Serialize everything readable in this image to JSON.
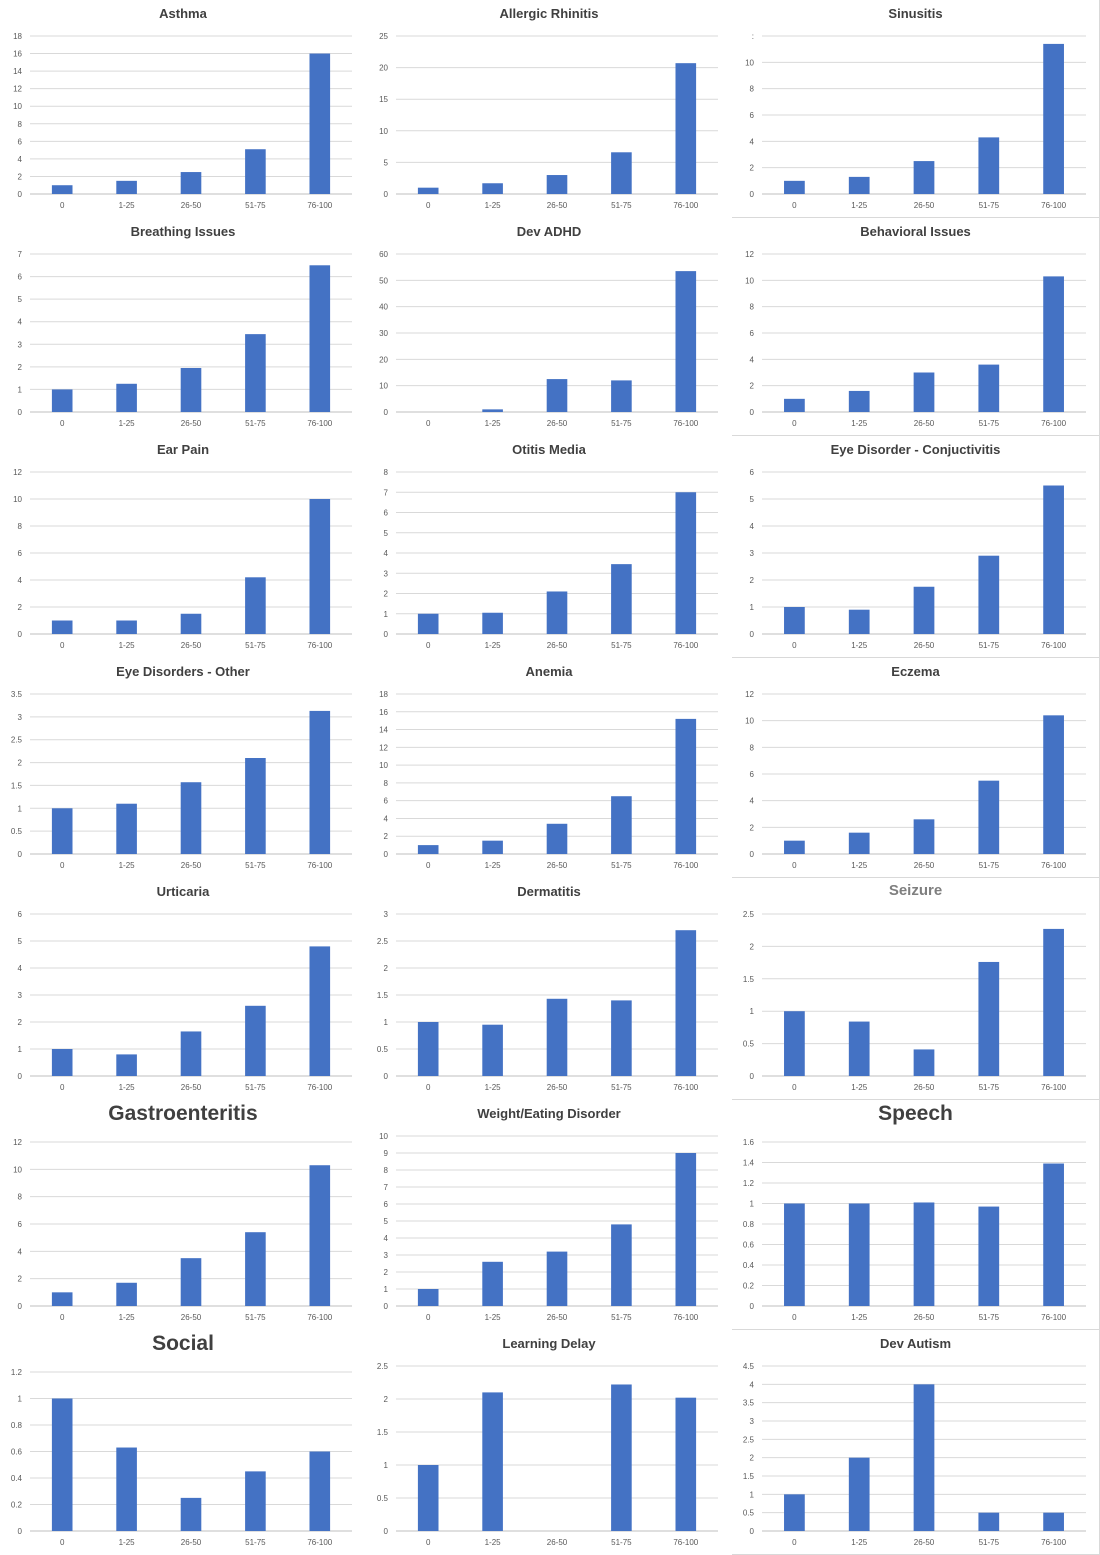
{
  "chart_data": [
    {
      "type": "bar",
      "title": "Asthma",
      "categories": [
        "0",
        "1-25",
        "26-50",
        "51-75",
        "76-100"
      ],
      "values": [
        1,
        1.5,
        2.5,
        5.1,
        16
      ],
      "ylim": [
        0,
        18
      ],
      "yticks": [
        "0",
        "2",
        "4",
        "6",
        "8",
        "10",
        "12",
        "14",
        "16",
        "18"
      ],
      "xlabel": "",
      "ylabel": "",
      "grid": true
    },
    {
      "type": "bar",
      "title": "Allergic Rhinitis",
      "categories": [
        "0",
        "1-25",
        "26-50",
        "51-75",
        "76-100"
      ],
      "values": [
        1,
        1.7,
        3,
        6.6,
        20.7
      ],
      "ylim": [
        0,
        25
      ],
      "yticks": [
        "0",
        "5",
        "10",
        "15",
        "20",
        "25"
      ],
      "xlabel": "",
      "ylabel": "",
      "grid": true
    },
    {
      "type": "bar",
      "title": "Sinusitis",
      "categories": [
        "0",
        "1-25",
        "26-50",
        "51-75",
        "76-100"
      ],
      "values": [
        1,
        1.3,
        2.5,
        4.3,
        11.4
      ],
      "ylim": [
        0,
        12
      ],
      "yticks": [
        "0",
        "2",
        "4",
        "6",
        "8",
        "10",
        ":"
      ],
      "xlabel": "",
      "ylabel": "",
      "grid": true
    },
    {
      "type": "bar",
      "title": "Breathing Issues",
      "categories": [
        "0",
        "1-25",
        "26-50",
        "51-75",
        "76-100"
      ],
      "values": [
        1,
        1.25,
        1.95,
        3.45,
        6.5
      ],
      "ylim": [
        0,
        7
      ],
      "yticks": [
        "0",
        "1",
        "2",
        "3",
        "4",
        "5",
        "6",
        "7"
      ],
      "xlabel": "",
      "ylabel": "",
      "grid": true
    },
    {
      "type": "bar",
      "title": "Dev ADHD",
      "categories": [
        "0",
        "1-25",
        "26-50",
        "51-75",
        "76-100"
      ],
      "values": [
        0,
        1,
        12.5,
        12,
        53.5
      ],
      "ylim": [
        0,
        60
      ],
      "yticks": [
        "0",
        "10",
        "20",
        "30",
        "40",
        "50",
        "60"
      ],
      "xlabel": "",
      "ylabel": "",
      "grid": true
    },
    {
      "type": "bar",
      "title": "Behavioral Issues",
      "categories": [
        "0",
        "1-25",
        "26-50",
        "51-75",
        "76-100"
      ],
      "values": [
        1,
        1.6,
        3,
        3.6,
        10.3
      ],
      "ylim": [
        0,
        12
      ],
      "yticks": [
        "0",
        "2",
        "4",
        "6",
        "8",
        "10",
        "12"
      ],
      "xlabel": "",
      "ylabel": "",
      "grid": true
    },
    {
      "type": "bar",
      "title": "Ear Pain",
      "categories": [
        "0",
        "1-25",
        "26-50",
        "51-75",
        "76-100"
      ],
      "values": [
        1,
        1,
        1.5,
        4.2,
        10
      ],
      "ylim": [
        0,
        12
      ],
      "yticks": [
        "0",
        "2",
        "4",
        "6",
        "8",
        "10",
        "12"
      ],
      "xlabel": "",
      "ylabel": "",
      "grid": true
    },
    {
      "type": "bar",
      "title": "Otitis Media",
      "categories": [
        "0",
        "1-25",
        "26-50",
        "51-75",
        "76-100"
      ],
      "values": [
        1,
        1.05,
        2.1,
        3.45,
        7
      ],
      "ylim": [
        0,
        8
      ],
      "yticks": [
        "0",
        "1",
        "2",
        "3",
        "4",
        "5",
        "6",
        "7",
        "8"
      ],
      "xlabel": "",
      "ylabel": "",
      "grid": true
    },
    {
      "type": "bar",
      "title": "Eye Disorder - Conjuctivitis",
      "categories": [
        "0",
        "1-25",
        "26-50",
        "51-75",
        "76-100"
      ],
      "values": [
        1,
        0.9,
        1.75,
        2.9,
        5.5
      ],
      "ylim": [
        0,
        6
      ],
      "yticks": [
        "0",
        "1",
        "2",
        "3",
        "4",
        "5",
        "6"
      ],
      "xlabel": "",
      "ylabel": "",
      "grid": true
    },
    {
      "type": "bar",
      "title": "Eye Disorders - Other",
      "categories": [
        "0",
        "1-25",
        "26-50",
        "51-75",
        "76-100"
      ],
      "values": [
        1,
        1.1,
        1.57,
        2.1,
        3.13
      ],
      "ylim": [
        0,
        3.5
      ],
      "yticks": [
        "0",
        "0.5",
        "1",
        "1.5",
        "2",
        "2.5",
        "3",
        "3.5"
      ],
      "xlabel": "",
      "ylabel": "",
      "grid": true
    },
    {
      "type": "bar",
      "title": "Anemia",
      "categories": [
        "0",
        "1-25",
        "26-50",
        "51-75",
        "76-100"
      ],
      "values": [
        1,
        1.5,
        3.4,
        6.5,
        15.2
      ],
      "ylim": [
        0,
        18
      ],
      "yticks": [
        "0",
        "2",
        "4",
        "6",
        "8",
        "10",
        "12",
        "14",
        "16",
        "18"
      ],
      "xlabel": "",
      "ylabel": "",
      "grid": true
    },
    {
      "type": "bar",
      "title": "Eczema",
      "categories": [
        "0",
        "1-25",
        "26-50",
        "51-75",
        "76-100"
      ],
      "values": [
        1,
        1.6,
        2.6,
        5.5,
        10.4
      ],
      "ylim": [
        0,
        12
      ],
      "yticks": [
        "0",
        "2",
        "4",
        "6",
        "8",
        "10",
        "12"
      ],
      "xlabel": "",
      "ylabel": "",
      "grid": true
    },
    {
      "type": "bar",
      "title": "Urticaria",
      "categories": [
        "0",
        "1-25",
        "26-50",
        "51-75",
        "76-100"
      ],
      "values": [
        1,
        0.8,
        1.65,
        2.6,
        4.8
      ],
      "ylim": [
        0,
        6
      ],
      "yticks": [
        "0",
        "1",
        "2",
        "3",
        "4",
        "5",
        "6"
      ],
      "xlabel": "",
      "ylabel": "",
      "grid": true
    },
    {
      "type": "bar",
      "title": "Dermatitis",
      "categories": [
        "0",
        "1-25",
        "26-50",
        "51-75",
        "76-100"
      ],
      "values": [
        1,
        0.95,
        1.43,
        1.4,
        2.7
      ],
      "ylim": [
        0,
        3
      ],
      "yticks": [
        "0",
        "0.5",
        "1",
        "1.5",
        "2",
        "2.5",
        "3"
      ],
      "xlabel": "",
      "ylabel": "",
      "grid": true
    },
    {
      "type": "bar",
      "title": "Seizure",
      "categories": [
        "0",
        "1-25",
        "26-50",
        "51-75",
        "76-100"
      ],
      "values": [
        1,
        0.84,
        0.41,
        1.76,
        2.27
      ],
      "ylim": [
        0,
        2.5
      ],
      "yticks": [
        "0",
        "0.5",
        "1",
        "1.5",
        "2",
        "2.5"
      ],
      "xlabel": "",
      "ylabel": "",
      "grid": true
    },
    {
      "type": "bar",
      "title": "Gastroenteritis",
      "categories": [
        "0",
        "1-25",
        "26-50",
        "51-75",
        "76-100"
      ],
      "values": [
        1,
        1.7,
        3.5,
        5.4,
        10.3
      ],
      "ylim": [
        0,
        12
      ],
      "yticks": [
        "0",
        "2",
        "4",
        "6",
        "8",
        "10",
        "12"
      ],
      "xlabel": "",
      "ylabel": "",
      "grid": true
    },
    {
      "type": "bar",
      "title": "Weight/Eating Disorder",
      "categories": [
        "0",
        "1-25",
        "26-50",
        "51-75",
        "76-100"
      ],
      "values": [
        1,
        2.6,
        3.2,
        4.8,
        9
      ],
      "ylim": [
        0,
        10
      ],
      "yticks": [
        "0",
        "1",
        "2",
        "3",
        "4",
        "5",
        "6",
        "7",
        "8",
        "9",
        "10"
      ],
      "xlabel": "",
      "ylabel": "",
      "grid": true
    },
    {
      "type": "bar",
      "title": "Speech",
      "categories": [
        "0",
        "1-25",
        "26-50",
        "51-75",
        "76-100"
      ],
      "values": [
        1,
        1,
        1.01,
        0.97,
        1.39
      ],
      "ylim": [
        0,
        1.6
      ],
      "yticks": [
        "0",
        "0.2",
        "0.4",
        "0.6",
        "0.8",
        "1",
        "1.2",
        "1.4",
        "1.6"
      ],
      "xlabel": "",
      "ylabel": "",
      "grid": true
    },
    {
      "type": "bar",
      "title": "Social",
      "categories": [
        "0",
        "1-25",
        "26-50",
        "51-75",
        "76-100"
      ],
      "values": [
        1,
        0.63,
        0.25,
        0.45,
        0.6
      ],
      "ylim": [
        0,
        1.2
      ],
      "yticks": [
        "0",
        "0.2",
        "0.4",
        "0.6",
        "0.8",
        "1",
        "1.2"
      ],
      "xlabel": "",
      "ylabel": "",
      "grid": true
    },
    {
      "type": "bar",
      "title": "Learning Delay",
      "categories": [
        "0",
        "1-25",
        "26-50",
        "51-75",
        "76-100"
      ],
      "values": [
        1,
        2.1,
        0,
        2.22,
        2.02
      ],
      "ylim": [
        0,
        2.5
      ],
      "yticks": [
        "0",
        "0.5",
        "1",
        "1.5",
        "2",
        "2.5"
      ],
      "xlabel": "",
      "ylabel": "",
      "grid": true
    },
    {
      "type": "bar",
      "title": "Dev Autism",
      "categories": [
        "0",
        "1-25",
        "26-50",
        "51-75",
        "76-100"
      ],
      "values": [
        1,
        2,
        4,
        0.5,
        0.5
      ],
      "ylim": [
        0,
        4.5
      ],
      "yticks": [
        "0",
        "0.5",
        "1",
        "1.5",
        "2",
        "2.5",
        "3",
        "3.5",
        "4",
        "4.5"
      ],
      "xlabel": "",
      "ylabel": "",
      "grid": true
    }
  ],
  "colors": {
    "bar": "#4472c4",
    "grid": "#d9d9d9",
    "axis": "#bfbfbf",
    "tick_text": "#595959",
    "title": "#404040"
  }
}
